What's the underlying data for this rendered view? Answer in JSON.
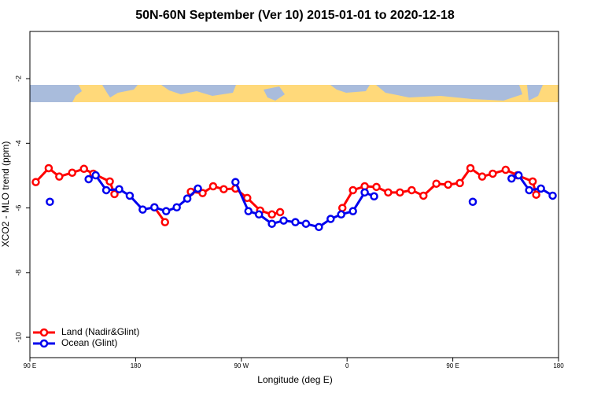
{
  "chart_data": {
    "type": "line",
    "title": "50N-60N September (Ver 10)   2015-01-01 to 2020-12-18",
    "x_label": "Longitude (deg E)",
    "y_label": "XCO2 - MLO trend (ppm)",
    "xlim": [
      90,
      540
    ],
    "xticks": [
      {
        "value": 90,
        "label": "90 E"
      },
      {
        "value": 180,
        "label": "180"
      },
      {
        "value": 270,
        "label": "90 W"
      },
      {
        "value": 360,
        "label": "0"
      },
      {
        "value": 450,
        "label": "90 E"
      },
      {
        "value": 540,
        "label": "180"
      }
    ],
    "ylim": [
      -10.63,
      -0.54
    ],
    "yticks": [
      -2,
      -4,
      -6,
      -8,
      -10
    ],
    "legend": "bottom-left",
    "series": [
      {
        "name": "Land (Nadir&Glint)",
        "color": "#ff0000",
        "x": [
          95,
          106,
          115,
          126,
          136,
          144,
          158,
          162,
          null,
          196,
          205,
          null,
          227,
          237,
          246,
          255,
          265,
          275,
          286,
          296,
          303,
          null,
          356,
          365,
          375,
          385,
          395,
          405,
          415,
          425,
          436,
          446,
          456,
          465,
          475,
          484,
          495,
          505,
          518,
          521
        ],
        "values": [
          -5.2,
          -4.77,
          -5.03,
          -4.91,
          -4.79,
          -4.94,
          -5.18,
          -5.57,
          null,
          -5.98,
          -6.44,
          null,
          -5.5,
          -5.54,
          -5.33,
          -5.42,
          -5.4,
          -5.69,
          -6.08,
          -6.2,
          -6.13,
          null,
          -6.0,
          -5.45,
          -5.33,
          -5.35,
          -5.52,
          -5.52,
          -5.45,
          -5.62,
          -5.25,
          -5.28,
          -5.23,
          -4.77,
          -5.03,
          -4.94,
          -4.82,
          -4.99,
          -5.18,
          -5.59
        ]
      },
      {
        "name": "Ocean (Glint)",
        "color": "#0000ee",
        "x": [
          107,
          null,
          140,
          146,
          155,
          166,
          175,
          186,
          196,
          206,
          215,
          224,
          233,
          null,
          265,
          276,
          285,
          296,
          306,
          316,
          325,
          336,
          346,
          355,
          365,
          375,
          383,
          null,
          467,
          null,
          500,
          506,
          515,
          525,
          535
        ],
        "values": [
          -5.81,
          null,
          -5.11,
          -4.99,
          -5.45,
          -5.42,
          -5.62,
          -6.05,
          -5.98,
          -6.1,
          -5.98,
          -5.71,
          -5.4,
          null,
          -5.2,
          -6.1,
          -6.2,
          -6.49,
          -6.39,
          -6.44,
          -6.49,
          -6.59,
          -6.34,
          -6.2,
          -6.1,
          -5.52,
          -5.64,
          null,
          -5.81,
          null,
          -5.09,
          -4.99,
          -5.45,
          -5.4,
          -5.62
        ]
      }
    ]
  }
}
